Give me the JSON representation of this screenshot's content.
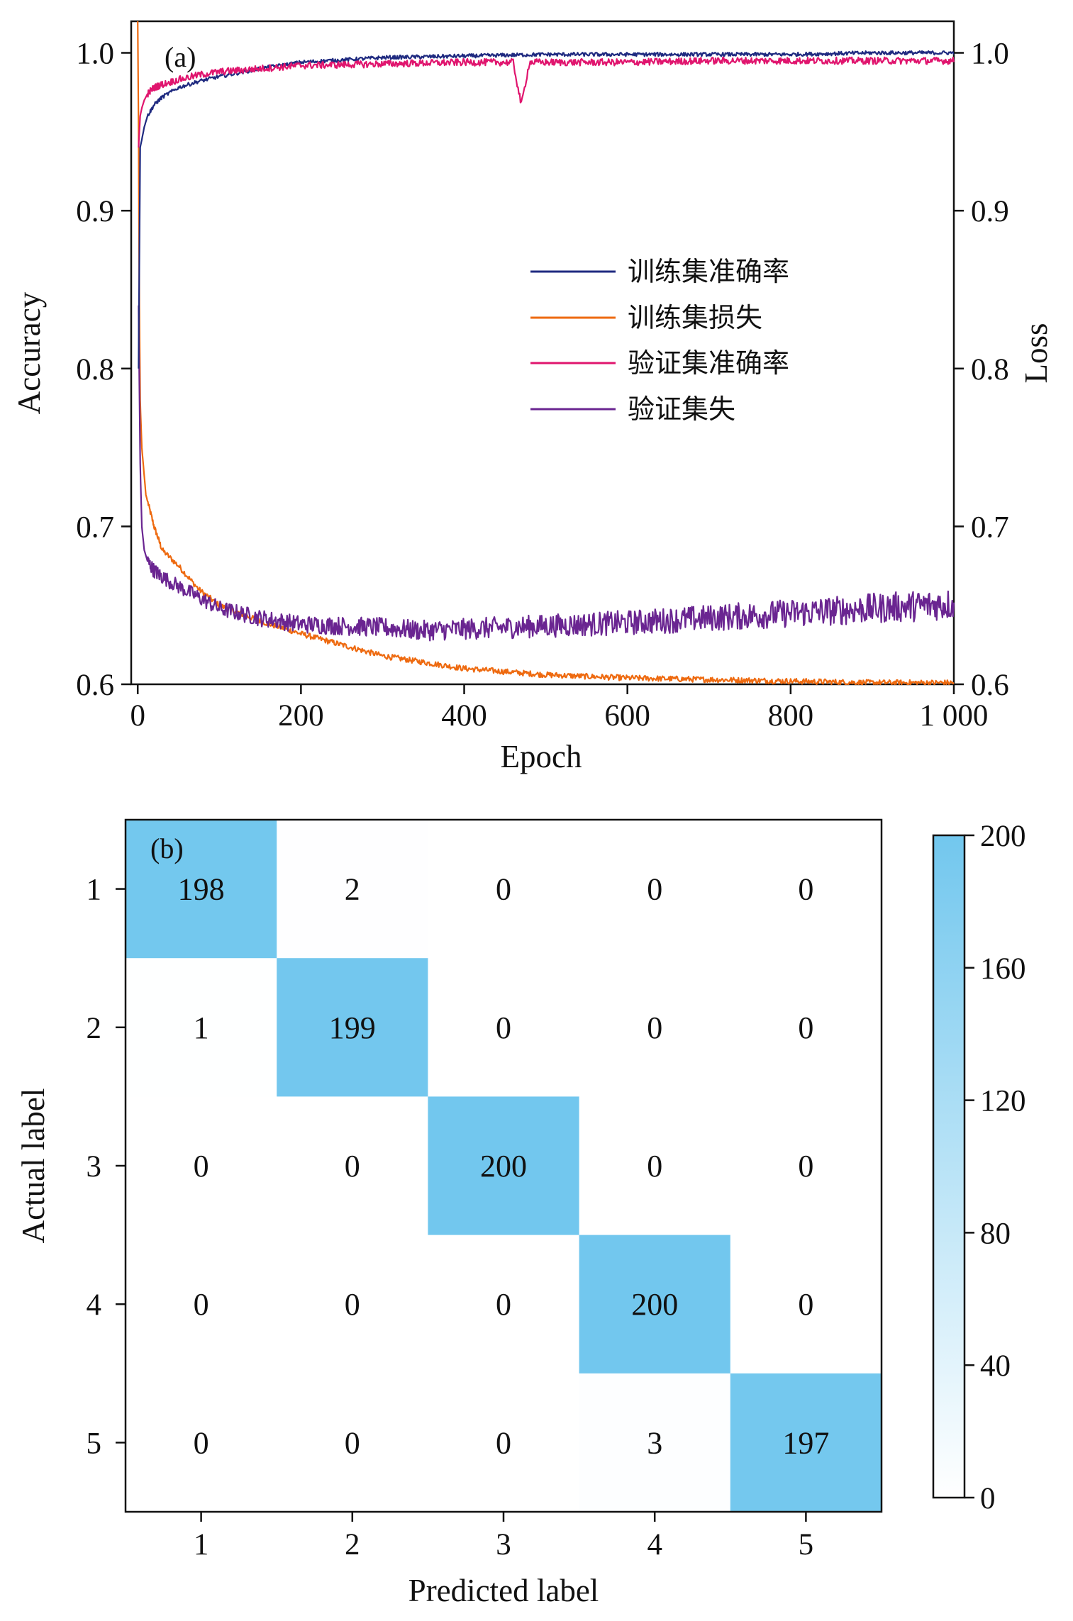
{
  "colors": {
    "train_acc": "#1f2a80",
    "train_loss": "#ee6a10",
    "val_acc": "#e0156e",
    "val_loss": "#6a2591",
    "heat_high": "#72c7ee",
    "heat_low": "#ffffff",
    "axis": "#111111"
  },
  "chart_data": [
    {
      "type": "line",
      "panel_label": "(a)",
      "title": "",
      "xlabel": "Epoch",
      "ylabel": "Accuracy",
      "ylabel_right": "Loss",
      "xlim": [
        -8,
        1000
      ],
      "ylim": [
        0.6,
        1.02
      ],
      "ylim_right": [
        0.6,
        1.02
      ],
      "x_ticks": [
        0,
        200,
        400,
        600,
        800,
        1000
      ],
      "x_tick_labels": [
        "0",
        "200",
        "400",
        "600",
        "800",
        "1 000"
      ],
      "y_ticks": [
        0.6,
        0.7,
        0.8,
        0.9,
        1.0
      ],
      "y_tick_labels": [
        "0.6",
        "0.7",
        "0.8",
        "0.9",
        "1.0"
      ],
      "y_tick_labels_right": [
        "0.6",
        "0.7",
        "0.8",
        "0.9",
        "1.0"
      ],
      "legend_position": "center-right",
      "grid": false,
      "series": [
        {
          "name": "训练集准确率",
          "axis": "left",
          "color_key": "train_acc",
          "x": [
            1,
            3,
            5,
            8,
            12,
            20,
            30,
            50,
            75,
            100,
            150,
            200,
            300,
            400,
            500,
            600,
            700,
            800,
            900,
            1000
          ],
          "values": [
            0.8,
            0.94,
            0.945,
            0.953,
            0.96,
            0.967,
            0.972,
            0.978,
            0.982,
            0.985,
            0.99,
            0.994,
            0.997,
            0.998,
            0.999,
            0.999,
            0.999,
            0.999,
            1.0,
            1.0
          ]
        },
        {
          "name": "训练集损失",
          "axis": "right",
          "color_key": "train_loss",
          "x": [
            0,
            1,
            2,
            3,
            5,
            10,
            20,
            30,
            50,
            75,
            100,
            150,
            200,
            300,
            400,
            500,
            600,
            700,
            800,
            900,
            1000
          ],
          "values": [
            1.02,
            0.95,
            0.84,
            0.78,
            0.75,
            0.72,
            0.7,
            0.685,
            0.675,
            0.66,
            0.65,
            0.64,
            0.632,
            0.618,
            0.61,
            0.606,
            0.604,
            0.603,
            0.602,
            0.601,
            0.601
          ]
        },
        {
          "name": "验证集准确率",
          "axis": "left",
          "color_key": "val_acc",
          "x": [
            1,
            3,
            5,
            8,
            12,
            20,
            30,
            50,
            75,
            100,
            150,
            200,
            300,
            400,
            460,
            470,
            480,
            500,
            600,
            700,
            800,
            900,
            1000
          ],
          "values": [
            0.94,
            0.96,
            0.965,
            0.97,
            0.974,
            0.978,
            0.98,
            0.983,
            0.986,
            0.988,
            0.99,
            0.992,
            0.993,
            0.994,
            0.994,
            0.967,
            0.994,
            0.994,
            0.994,
            0.995,
            0.995,
            0.995,
            0.995
          ]
        },
        {
          "name": "验证集失",
          "axis": "right",
          "color_key": "val_loss",
          "x": [
            1,
            3,
            5,
            8,
            12,
            20,
            30,
            50,
            75,
            100,
            150,
            200,
            300,
            350,
            400,
            500,
            600,
            700,
            800,
            900,
            1000
          ],
          "values": [
            0.84,
            0.74,
            0.7,
            0.685,
            0.678,
            0.672,
            0.668,
            0.662,
            0.655,
            0.648,
            0.642,
            0.638,
            0.636,
            0.634,
            0.635,
            0.637,
            0.639,
            0.642,
            0.645,
            0.648,
            0.651
          ]
        }
      ]
    },
    {
      "type": "heatmap",
      "panel_label": "(b)",
      "title": "",
      "xlabel": "Predicted label",
      "ylabel": "Actual label",
      "x_categories": [
        "1",
        "2",
        "3",
        "4",
        "5"
      ],
      "y_categories": [
        "1",
        "2",
        "3",
        "4",
        "5"
      ],
      "matrix": [
        [
          198,
          2,
          0,
          0,
          0
        ],
        [
          1,
          199,
          0,
          0,
          0
        ],
        [
          0,
          0,
          200,
          0,
          0
        ],
        [
          0,
          0,
          0,
          200,
          0
        ],
        [
          0,
          0,
          0,
          3,
          197
        ]
      ],
      "colorbar_range": [
        0,
        200
      ],
      "colorbar_ticks": [
        0,
        40,
        80,
        120,
        160,
        200
      ],
      "colorbar_tick_labels": [
        "0",
        "40",
        "80",
        "120",
        "160",
        "200"
      ],
      "colorbar_position": "right"
    }
  ]
}
